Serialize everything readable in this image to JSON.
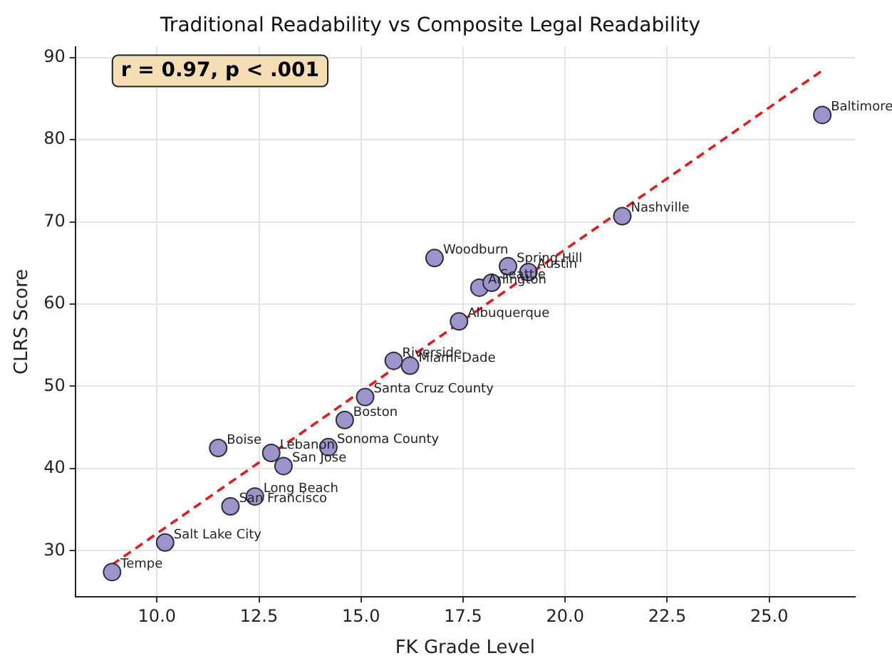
{
  "chart_data": {
    "type": "scatter",
    "title": "Traditional Readability vs Composite Legal Readability",
    "xlabel": "FK Grade Level",
    "ylabel": "CLRS Score",
    "xlim": [
      8.0,
      27.1
    ],
    "ylim": [
      24.4,
      91.3
    ],
    "xticks": [
      {
        "value": 10,
        "label": "10.0"
      },
      {
        "value": 12.5,
        "label": "12.5"
      },
      {
        "value": 15,
        "label": "15.0"
      },
      {
        "value": 17.5,
        "label": "17.5"
      },
      {
        "value": 20,
        "label": "20.0"
      },
      {
        "value": 22.5,
        "label": "22.5"
      },
      {
        "value": 25,
        "label": "25.0"
      }
    ],
    "yticks": [
      30,
      40,
      50,
      60,
      70,
      80,
      90
    ],
    "grid": true,
    "legend": false,
    "marker": "circle",
    "series": [
      {
        "type": "scatter",
        "color": "#9b95c9",
        "x": [
          8.9,
          10.2,
          11.8,
          12.4,
          11.5,
          12.8,
          13.1,
          14.2,
          14.6,
          15.1,
          15.8,
          16.2,
          17.4,
          16.8,
          17.9,
          18.2,
          18.6,
          19.1,
          21.4,
          26.3
        ],
        "values": [
          27.4,
          31.0,
          35.4,
          36.6,
          42.5,
          41.9,
          40.3,
          42.6,
          45.9,
          48.7,
          53.1,
          52.5,
          57.9,
          65.6,
          62.0,
          62.6,
          64.6,
          63.9,
          70.7,
          83.0
        ]
      },
      {
        "type": "line",
        "color": "#e41a1c",
        "line_style": "dashed",
        "marker": "none",
        "x": [
          8.9,
          26.3
        ],
        "values": [
          28.3,
          88.4
        ]
      }
    ],
    "annotations": [
      "r = 0.97, p < .001",
      {
        "text": "Tempe",
        "x": 8.9,
        "y": 27.4
      },
      {
        "text": "Salt Lake City",
        "x": 10.2,
        "y": 31.0
      },
      {
        "text": "San Francisco",
        "x": 11.8,
        "y": 35.4
      },
      {
        "text": "Long Beach",
        "x": 12.4,
        "y": 36.6
      },
      {
        "text": "Boise",
        "x": 11.5,
        "y": 42.5
      },
      {
        "text": "Lebanon",
        "x": 12.8,
        "y": 41.9
      },
      {
        "text": "San Jose",
        "x": 13.1,
        "y": 40.3
      },
      {
        "text": "Sonoma County",
        "x": 14.2,
        "y": 42.6
      },
      {
        "text": "Boston",
        "x": 14.6,
        "y": 45.9
      },
      {
        "text": "Santa Cruz County",
        "x": 15.1,
        "y": 48.7
      },
      {
        "text": "Riverside",
        "x": 15.8,
        "y": 53.1
      },
      {
        "text": "Miami-Dade",
        "x": 16.2,
        "y": 52.5
      },
      {
        "text": "Albuquerque",
        "x": 17.4,
        "y": 57.9
      },
      {
        "text": "Woodburn",
        "x": 16.8,
        "y": 65.6
      },
      {
        "text": "Arlington",
        "x": 17.9,
        "y": 62.0
      },
      {
        "text": "Seattle",
        "x": 18.2,
        "y": 62.6
      },
      {
        "text": "Spring Hill",
        "x": 18.6,
        "y": 64.6
      },
      {
        "text": "Austin",
        "x": 19.1,
        "y": 63.9
      },
      {
        "text": "Nashville",
        "x": 21.4,
        "y": 70.7
      },
      {
        "text": "Baltimore",
        "x": 26.3,
        "y": 83.0
      }
    ]
  }
}
